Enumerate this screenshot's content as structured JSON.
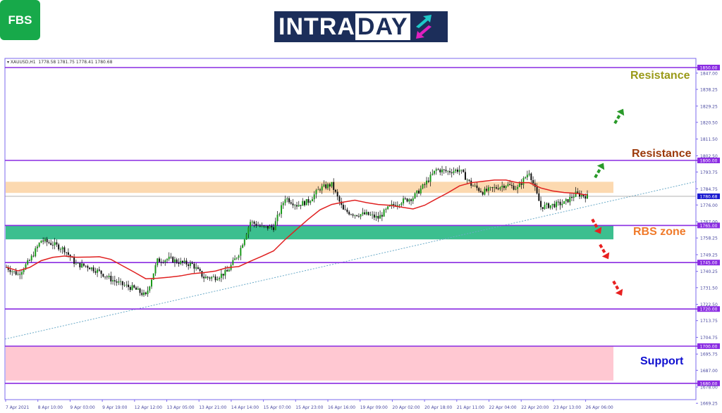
{
  "logo_fbs": "FBS",
  "logo_intraday": {
    "part1": "INTRA",
    "part2": "DAY"
  },
  "header": {
    "symbol": "XAUUSD,H1",
    "values": "1778.58 1781.75 1778.41 1780.68"
  },
  "annotations": {
    "resistance_top": "Resistance",
    "resistance_mid": "Resistance",
    "rbs": "RBS zone",
    "support": "Support"
  },
  "colors": {
    "resistance_top": "#9a9a18",
    "resistance_mid": "#9c3a0c",
    "rbs": "#f07a2a",
    "support": "#1010d0",
    "level_line": "#8a2be2",
    "ma": "#e02020",
    "green_zone": "#3cbf8f",
    "orange_zone": "#fcd9b0",
    "pink_zone": "#ffc8d2",
    "bull_arrow": "#2a9a2a",
    "bear_arrow": "#e82020",
    "trendline": "#6aaac8"
  },
  "chart_data": {
    "type": "candlestick",
    "symbol": "XAUUSD",
    "timeframe": "H1",
    "ylim": [
      1669.25,
      1852
    ],
    "y_ticks": [
      "1847.00",
      "1838.25",
      "1829.25",
      "1820.50",
      "1811.50",
      "1802.50",
      "1793.75",
      "1784.75",
      "1776.00",
      "1767.00",
      "1758.25",
      "1749.25",
      "1740.25",
      "1731.50",
      "1722.50",
      "1713.75",
      "1704.75",
      "1695.75",
      "1687.00",
      "1678.00",
      "1669.25"
    ],
    "x_ticks": [
      "7 Apr 2021",
      "8 Apr 10:00",
      "9 Apr 03:00",
      "9 Apr 19:00",
      "12 Apr 12:00",
      "13 Apr 05:00",
      "13 Apr 21:00",
      "14 Apr 14:00",
      "15 Apr 07:00",
      "15 Apr 23:00",
      "16 Apr 16:00",
      "19 Apr 09:00",
      "20 Apr 02:00",
      "20 Apr 18:00",
      "21 Apr 11:00",
      "22 Apr 04:00",
      "22 Apr 20:00",
      "23 Apr 13:00",
      "26 Apr 06:00"
    ],
    "closes": [
      1742.5,
      1738.6,
      1746,
      1757,
      1755,
      1752,
      1744,
      1743,
      1740,
      1736,
      1733,
      1731,
      1727,
      1746,
      1747,
      1745,
      1744,
      1737,
      1737,
      1740,
      1750,
      1767,
      1764,
      1764,
      1780,
      1776,
      1778,
      1785,
      1787,
      1773,
      1771,
      1771,
      1769,
      1775,
      1778,
      1780,
      1787,
      1795,
      1794,
      1795,
      1787,
      1783,
      1785,
      1787,
      1785,
      1794,
      1775,
      1776,
      1777,
      1782,
      1780.68
    ],
    "current_price": "1780.68",
    "levels": [
      "1850.00",
      "1800.00",
      "1765.00",
      "1745.00",
      "1720.00",
      "1700.00",
      "1680.00"
    ],
    "zones": [
      {
        "type": "resistance",
        "from": 1782.5,
        "to": 1788.5
      },
      {
        "type": "rbs",
        "from": 1757.5,
        "to": 1765
      },
      {
        "type": "support",
        "from": 1681.5,
        "to": 1700
      }
    ],
    "trendline": {
      "start": 1703.8,
      "end": 1788.6
    }
  }
}
